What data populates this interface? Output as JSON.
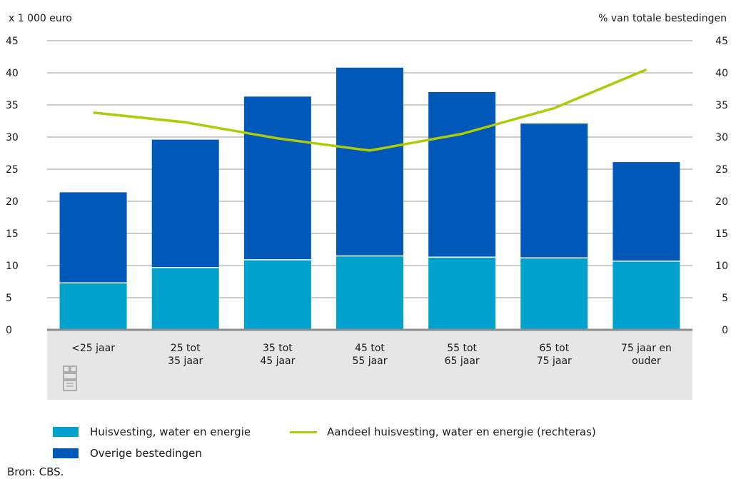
{
  "chart_data": {
    "type": "bar",
    "stacked": true,
    "left_axis_label": "x 1 000 euro",
    "right_axis_label": "% van totale bestedingen",
    "ylim": [
      0,
      45
    ],
    "yticks": [
      0,
      5,
      10,
      15,
      20,
      25,
      30,
      35,
      40,
      45
    ],
    "y2lim": [
      0,
      45
    ],
    "y2ticks": [
      0,
      5,
      10,
      15,
      20,
      25,
      30,
      35,
      40,
      45
    ],
    "categories": [
      [
        "<25 jaar"
      ],
      [
        "25 tot",
        "35 jaar"
      ],
      [
        "35 tot",
        "45 jaar"
      ],
      [
        "45 tot",
        "55 jaar"
      ],
      [
        "55 tot",
        "65 jaar"
      ],
      [
        "65 tot",
        "75 jaar"
      ],
      [
        "75 jaar en",
        "ouder"
      ]
    ],
    "series": [
      {
        "name": "Huisvesting, water en energie",
        "type": "bar",
        "color": "#00a1cd",
        "values": [
          7.3,
          9.7,
          10.9,
          11.5,
          11.3,
          11.2,
          10.7
        ]
      },
      {
        "name": "Overige bestedingen",
        "type": "bar",
        "color": "#0058b8",
        "values": [
          14.1,
          19.9,
          25.4,
          29.3,
          25.7,
          20.9,
          15.4
        ]
      },
      {
        "name": "Aandeel huisvesting, water en energie (rechteras)",
        "type": "line",
        "axis": "right",
        "color": "#afcb05",
        "values": [
          33.8,
          32.3,
          29.8,
          27.9,
          30.5,
          34.5,
          40.5
        ]
      }
    ],
    "grid": true
  },
  "source": "Bron: CBS."
}
